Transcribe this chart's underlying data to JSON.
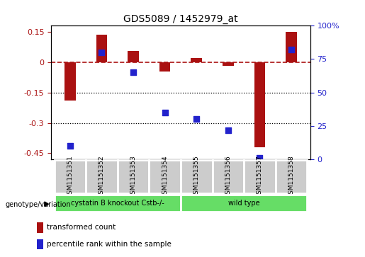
{
  "title": "GDS5089 / 1452979_at",
  "samples": [
    "GSM1151351",
    "GSM1151352",
    "GSM1151353",
    "GSM1151354",
    "GSM1151355",
    "GSM1151356",
    "GSM1151357",
    "GSM1151358"
  ],
  "red_values": [
    -0.19,
    0.135,
    0.055,
    -0.045,
    0.02,
    -0.02,
    -0.42,
    0.148
  ],
  "blue_values": [
    10,
    80,
    65,
    35,
    30,
    22,
    1,
    82
  ],
  "group1_samples": 4,
  "group1_label": "cystatin B knockout Cstb-/-",
  "group2_label": "wild type",
  "group_color": "#66dd66",
  "bar_color_red": "#aa1111",
  "bar_color_blue": "#2222cc",
  "ylim_left": [
    -0.48,
    0.18
  ],
  "yticks_left": [
    0.15,
    0.0,
    -0.15,
    -0.3,
    -0.45
  ],
  "yticks_right": [
    100,
    75,
    50,
    25,
    0
  ],
  "legend_red": "transformed count",
  "legend_blue": "percentile rank within the sample",
  "genotype_label": "genotype/variation",
  "dotted_lines": [
    -0.15,
    -0.3
  ],
  "bar_width": 0.35
}
